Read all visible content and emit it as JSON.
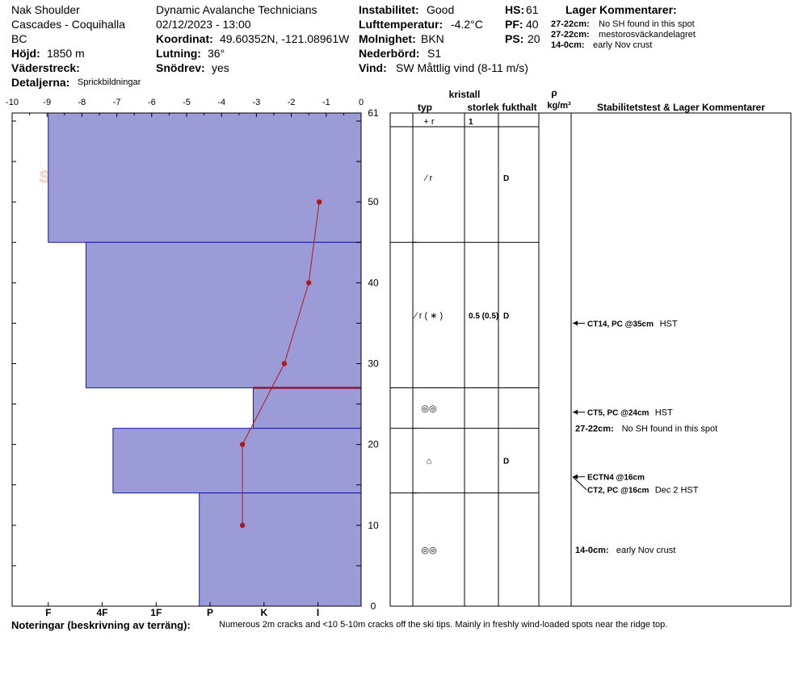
{
  "header": {
    "location": "Nak Shoulder",
    "region": "Cascades - Coquihalla",
    "province": "BC",
    "height_label": "Höjd:",
    "height_value": "1850 m",
    "aspect_label": "Väderstreck:",
    "aspect_value": "",
    "details_label": "Detaljerna:",
    "details_value": "Sprickbildningar",
    "organization": "Dynamic Avalanche Technicians",
    "datetime": "02/12/2023 - 13:00",
    "coord_label": "Koordinat:",
    "coord_value": "49.60352N, -121.08961W",
    "slope_label": "Lutning:",
    "slope_value": "36°",
    "drift_label": "Snödrev:",
    "drift_value": "yes",
    "instability_label": "Instabilitet:",
    "instability_value": "Good",
    "airtemp_label": "Lufttemperatur:",
    "airtemp_value": "-4.2°C",
    "cloud_label": "Molnighet:",
    "cloud_value": "BKN",
    "precip_label": "Nederbörd:",
    "precip_value": "S1",
    "wind_label": "Vind:",
    "wind_value": "SW  Måttlig vind (8-11 m/s)",
    "hs_label": "HS:",
    "hs_value": "61",
    "pf_label": "PF:",
    "pf_value": "40",
    "ps_label": "PS:",
    "ps_value": "20",
    "layer_comments_title": "Lager Kommentarer:",
    "layer_comments": [
      {
        "range": "27-22cm:",
        "text": "No SH found in this spot"
      },
      {
        "range": "27-22cm:",
        "text": "mestorosväckandelagret"
      },
      {
        "range": "14-0cm:",
        "text": "early Nov crust"
      }
    ]
  },
  "table": {
    "col_crystal": "kristall",
    "col_type": "typ",
    "col_size": "storlek",
    "col_moisture": "fukthalt",
    "col_density_sym": "ρ",
    "col_density_unit": "kg/m³",
    "col_stability": "Stabilitetstest & Lager Kommentarer",
    "surface_row": {
      "type": "+ r",
      "size": "1"
    },
    "layers": [
      {
        "top": 61,
        "bottom": 45,
        "type": "⁄ r",
        "size": "",
        "moisture": "D"
      },
      {
        "top": 45,
        "bottom": 27,
        "type": "⁄ r ( ∗ )",
        "size": "0.5 (0.5)",
        "moisture": "D"
      },
      {
        "top": 27,
        "bottom": 22,
        "type": "◎◎",
        "size": "",
        "moisture": ""
      },
      {
        "top": 22,
        "bottom": 14,
        "type": "⌂",
        "size": "",
        "moisture": "D"
      },
      {
        "top": 14,
        "bottom": 0,
        "type": "◎◎",
        "size": "",
        "moisture": ""
      }
    ],
    "tests": [
      {
        "depth": 35,
        "label": "CT14, PC @35cm",
        "note": "HST"
      },
      {
        "depth": 24,
        "label": "CT5, PC @24cm",
        "note": "HST"
      },
      {
        "depth": 16,
        "label": "ECTN4 @16cm",
        "note": ""
      },
      {
        "depth": 16,
        "label": "CT2, PC @16cm",
        "note": "Dec 2 HST"
      }
    ],
    "comments": [
      {
        "depth": 22,
        "range": "27-22cm:",
        "text": "No SH found in this spot"
      },
      {
        "depth": 7,
        "range": "14-0cm:",
        "text": "early Nov crust"
      }
    ]
  },
  "notes": {
    "label": "Noteringar (beskrivning av terräng):",
    "text": "Numerous 2m cracks and <10 5-10m cracks off the ski tips. Mainly in freshly wind-loaded spots near the ridge top."
  },
  "logo_text": "SNOW PILOT",
  "chart_data": {
    "type": "bar",
    "xlabel": "",
    "ylabel": "",
    "temp_ticks": [
      -10,
      -9,
      -8,
      -7,
      -6,
      -5,
      -4,
      -3,
      -2,
      -1,
      0
    ],
    "temp_range": [
      -10,
      0
    ],
    "height_range": [
      0,
      61
    ],
    "height_ticks": [
      0,
      10,
      20,
      30,
      40,
      50,
      61
    ],
    "hardness_ticks": [
      {
        "label": "I",
        "value": 1
      },
      {
        "label": "K",
        "value": 2
      },
      {
        "label": "P",
        "value": 3
      },
      {
        "label": "1F",
        "value": 4
      },
      {
        "label": "4F",
        "value": 5
      },
      {
        "label": "F",
        "value": 6
      }
    ],
    "hardness_range": [
      0.2,
      6.67
    ],
    "hardness_layers": [
      {
        "top": 61,
        "bottom": 45,
        "hardness": 6.0
      },
      {
        "top": 45,
        "bottom": 27,
        "hardness": 5.3
      },
      {
        "top": 27,
        "bottom": 22,
        "hardness": 2.2
      },
      {
        "top": 22,
        "bottom": 14,
        "hardness": 4.8
      },
      {
        "top": 14,
        "bottom": 0,
        "hardness": 3.2
      }
    ],
    "weak_layer_depth": 27,
    "temperature_profile": [
      {
        "depth": 50,
        "temp": -1.2
      },
      {
        "depth": 40,
        "temp": -1.5
      },
      {
        "depth": 30,
        "temp": -2.2
      },
      {
        "depth": 20,
        "temp": -3.4
      },
      {
        "depth": 10,
        "temp": -3.4
      }
    ],
    "colors": {
      "fill": "#9b9bd8",
      "edge": "#1a1aa0",
      "temp": "#b01818",
      "weak": "#8b1a3a"
    }
  }
}
